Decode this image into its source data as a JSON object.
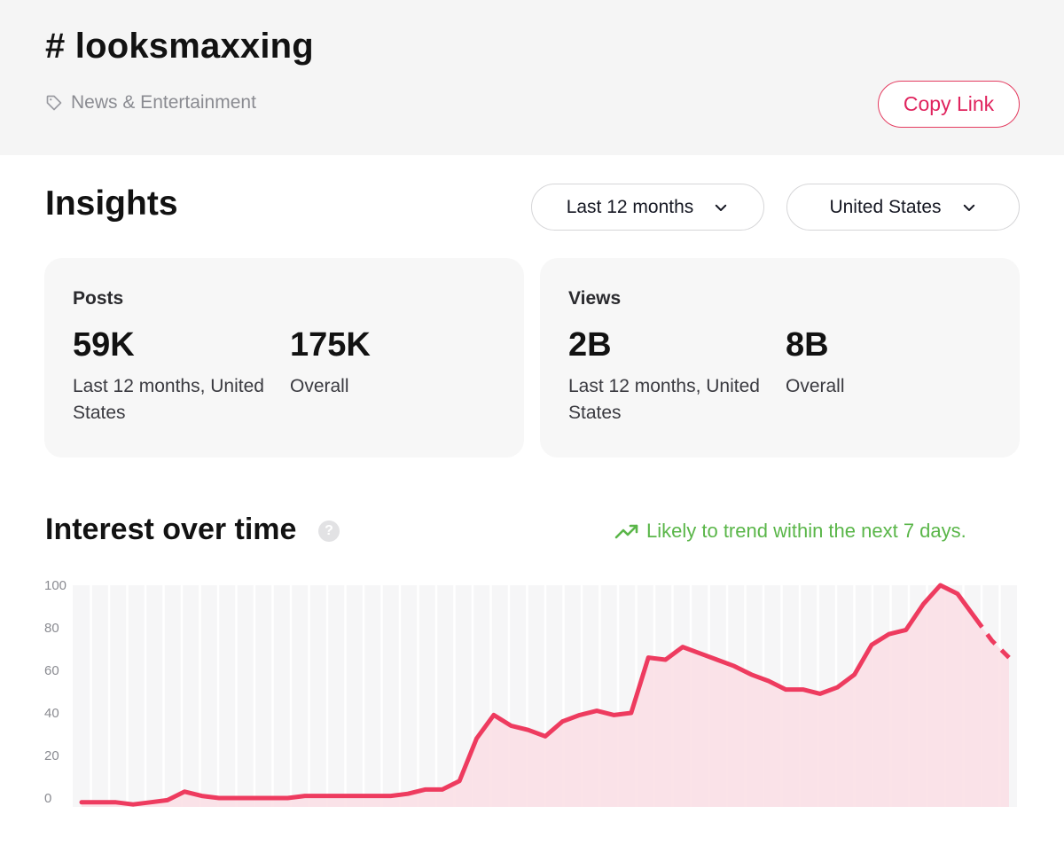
{
  "header": {
    "hashtag": "# looksmaxxing",
    "category": "News & Entertainment",
    "copy_link_label": "Copy Link"
  },
  "insights": {
    "title": "Insights",
    "period_filter": "Last 12 months",
    "region_filter": "United States"
  },
  "cards": {
    "posts": {
      "label": "Posts",
      "primary_value": "59K",
      "primary_caption": "Last 12 months, United States",
      "secondary_value": "175K",
      "secondary_caption": "Overall"
    },
    "views": {
      "label": "Views",
      "primary_value": "2B",
      "primary_caption": "Last 12 months, United States",
      "secondary_value": "8B",
      "secondary_caption": "Overall"
    }
  },
  "interest": {
    "title": "Interest over time",
    "help_glyph": "?",
    "trend_note": "Likely to trend within the next 7 days."
  },
  "colors": {
    "accent": "#e0245e",
    "line": "#ee3b5f",
    "area": "#fbe0e6",
    "trend": "#5ab649"
  },
  "chart_data": {
    "type": "area",
    "title": "",
    "ylim": [
      0,
      100
    ],
    "y_ticks": [
      "0",
      "20",
      "40",
      "60",
      "80",
      "100"
    ],
    "grid": true,
    "series": [
      {
        "values": [
          -2,
          -2,
          -2,
          -3,
          -2,
          -1,
          3,
          1,
          0,
          0,
          0,
          0,
          0,
          1,
          1,
          1,
          1,
          1,
          1,
          2,
          4,
          4,
          8,
          28,
          39,
          34,
          32,
          29,
          36,
          39,
          41,
          39,
          40,
          66,
          65,
          71,
          68,
          65,
          62,
          58,
          55,
          51,
          51,
          49,
          52,
          58,
          72,
          77,
          79,
          91,
          100,
          96,
          85,
          74,
          66
        ]
      }
    ],
    "projected_from_index": 52
  }
}
